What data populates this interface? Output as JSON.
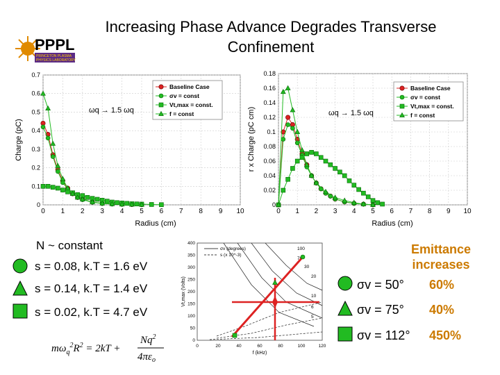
{
  "slide": {
    "title": "Increasing Phase Advance Degrades Transverse Confinement",
    "logo_text": "PPPL",
    "logo_sub1": "PRINCETON PLASMA",
    "logo_sub2": "PHYSICS LABORATORY"
  },
  "colors": {
    "accent": "#cc7a00",
    "green": "#22bb22",
    "red": "#dd2222"
  },
  "chart_data": [
    {
      "type": "line",
      "annotation": "ωq → 1.5 ωq",
      "xlabel": "Radius (cm)",
      "ylabel": "Charge (pC)",
      "xlim": [
        0,
        10
      ],
      "ylim": [
        0,
        0.7
      ],
      "xticks": [
        "0",
        "1",
        "2",
        "3",
        "4",
        "5",
        "6",
        "7",
        "8",
        "9",
        "10"
      ],
      "yticks": [
        "0",
        "0.1",
        "0.2",
        "0.3",
        "0.4",
        "0.5",
        "0.6",
        "0.7"
      ],
      "grid": true,
      "legend_position": "top-right",
      "series": [
        {
          "name": "Baseline Case",
          "marker": "circle-red",
          "x": [
            0,
            0.25,
            0.5,
            0.75,
            1,
            1.25,
            1.5,
            1.75,
            2,
            2.5,
            3,
            3.5,
            4,
            4.5,
            5
          ],
          "y": [
            0.44,
            0.38,
            0.27,
            0.19,
            0.13,
            0.09,
            0.06,
            0.04,
            0.03,
            0.015,
            0.008,
            0.005,
            0.003,
            0.002,
            0.001
          ]
        },
        {
          "name": "σv = const",
          "marker": "circle-green",
          "x": [
            0,
            0.25,
            0.5,
            0.75,
            1,
            1.25,
            1.5,
            1.75,
            2,
            2.5,
            3,
            3.5,
            4,
            4.5,
            5
          ],
          "y": [
            0.42,
            0.36,
            0.26,
            0.18,
            0.12,
            0.085,
            0.06,
            0.04,
            0.028,
            0.014,
            0.007,
            0.004,
            0.003,
            0.002,
            0.001
          ]
        },
        {
          "name": "Vt,max = const.",
          "marker": "square-green",
          "x": [
            0,
            0.25,
            0.5,
            0.75,
            1,
            1.25,
            1.5,
            1.75,
            2,
            2.25,
            2.5,
            2.75,
            3,
            3.25,
            3.5,
            3.75,
            4,
            4.25,
            4.5,
            4.75,
            5,
            5.5,
            6
          ],
          "y": [
            0.1,
            0.1,
            0.095,
            0.09,
            0.08,
            0.07,
            0.065,
            0.055,
            0.05,
            0.04,
            0.035,
            0.03,
            0.025,
            0.02,
            0.015,
            0.012,
            0.01,
            0.008,
            0.006,
            0.005,
            0.004,
            0.002,
            0.001
          ]
        },
        {
          "name": "f = const",
          "marker": "triangle-green",
          "x": [
            0,
            0.25,
            0.5,
            0.75,
            1,
            1.25,
            1.5,
            1.75,
            2,
            2.5,
            3,
            3.5,
            4,
            4.5,
            5
          ],
          "y": [
            0.6,
            0.52,
            0.33,
            0.21,
            0.14,
            0.09,
            0.06,
            0.04,
            0.03,
            0.015,
            0.008,
            0.005,
            0.003,
            0.002,
            0.001
          ]
        }
      ]
    },
    {
      "type": "line",
      "annotation": "ωq → 1.5 ωq",
      "xlabel": "Radius (cm)",
      "ylabel": "r x Charge (pC cm)",
      "xlim": [
        0,
        10
      ],
      "ylim": [
        0,
        0.18
      ],
      "xticks": [
        "0",
        "1",
        "2",
        "3",
        "4",
        "5",
        "6",
        "7",
        "8",
        "9",
        "10"
      ],
      "yticks": [
        "0",
        "0.02",
        "0.04",
        "0.06",
        "0.08",
        "0.1",
        "0.12",
        "0.14",
        "0.16",
        "0.18"
      ],
      "grid": true,
      "legend_position": "top-right",
      "series": [
        {
          "name": "Baseline Case",
          "marker": "circle-red",
          "x": [
            0,
            0.25,
            0.5,
            0.75,
            1,
            1.25,
            1.5,
            1.75,
            2,
            2.25,
            2.5,
            2.75,
            3,
            3.5,
            4,
            4.5,
            5
          ],
          "y": [
            0,
            0.1,
            0.12,
            0.11,
            0.09,
            0.07,
            0.055,
            0.04,
            0.03,
            0.022,
            0.016,
            0.012,
            0.008,
            0.004,
            0.002,
            0.001,
            0.0
          ]
        },
        {
          "name": "σv = const",
          "marker": "circle-green",
          "x": [
            0,
            0.25,
            0.5,
            0.75,
            1,
            1.25,
            1.5,
            1.75,
            2,
            2.25,
            2.5,
            2.75,
            3,
            3.5,
            4,
            4.5,
            5
          ],
          "y": [
            0,
            0.09,
            0.11,
            0.105,
            0.085,
            0.068,
            0.052,
            0.04,
            0.03,
            0.022,
            0.016,
            0.012,
            0.008,
            0.004,
            0.002,
            0.001,
            0.0
          ]
        },
        {
          "name": "Vt,max = const.",
          "marker": "square-green",
          "x": [
            0,
            0.25,
            0.5,
            0.75,
            1,
            1.25,
            1.5,
            1.75,
            2,
            2.25,
            2.5,
            2.75,
            3,
            3.25,
            3.5,
            3.75,
            4,
            4.25,
            4.5,
            4.75,
            5,
            5.25,
            5.5
          ],
          "y": [
            0,
            0.02,
            0.035,
            0.05,
            0.06,
            0.065,
            0.07,
            0.072,
            0.07,
            0.065,
            0.06,
            0.055,
            0.05,
            0.045,
            0.04,
            0.033,
            0.027,
            0.021,
            0.016,
            0.011,
            0.006,
            0.003,
            0.001
          ]
        },
        {
          "name": "f = const",
          "marker": "triangle-green",
          "x": [
            0,
            0.25,
            0.5,
            0.75,
            1,
            1.25,
            1.5,
            1.75,
            2,
            2.5,
            3,
            3.5,
            4,
            4.5,
            5
          ],
          "y": [
            0,
            0.155,
            0.16,
            0.13,
            0.1,
            0.075,
            0.055,
            0.04,
            0.03,
            0.018,
            0.01,
            0.006,
            0.003,
            0.001,
            0.0
          ]
        }
      ]
    }
  ],
  "left_panel": {
    "constant_label": "N ~ constant",
    "items": [
      {
        "marker": "circle",
        "text": "s = 0.08, k.T = 1.6 eV"
      },
      {
        "marker": "triangle",
        "text": "s = 0.14, k.T = 1.4 eV"
      },
      {
        "marker": "square",
        "text": "s = 0.02, k.T = 4.7 eV"
      }
    ],
    "equation": "mωq²R² = 2kT + Nq²/(4πε₀)"
  },
  "small_chart": {
    "xlabel": "f (kHz)",
    "ylabel": "Vt,max (Volts)",
    "xticks": [
      "0",
      "20",
      "40",
      "60",
      "80",
      "100",
      "120"
    ],
    "yticks": [
      "0",
      "50",
      "100",
      "150",
      "200",
      "250",
      "300",
      "350",
      "400"
    ],
    "legend": [
      "σv (degrees)",
      "s (x 10^-3)"
    ],
    "curve_labels": [
      "100",
      "70",
      "30",
      "20",
      "10",
      "6",
      "5"
    ]
  },
  "right_panel": {
    "emittance_line1": "Emittance",
    "emittance_line2": "increases",
    "rows": [
      {
        "marker": "circle",
        "sigma": "σv = 50°",
        "pct": "60%"
      },
      {
        "marker": "triangle",
        "sigma": "σv = 75°",
        "pct": "40%"
      },
      {
        "marker": "square",
        "sigma": "σv = 112°",
        "pct": "450%"
      }
    ]
  }
}
